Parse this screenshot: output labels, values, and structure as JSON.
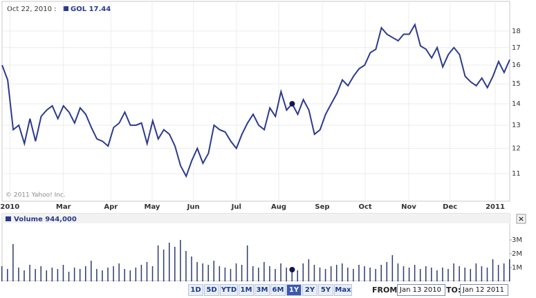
{
  "chart_data": [
    {
      "type": "line",
      "header_date": "Oct 22, 2010 :",
      "legend_text": "GOL 17.44",
      "copyright": "© 2011 Yahoo! Inc.",
      "log_scale": true,
      "grid": true,
      "color": "#2a3a8c",
      "xlim": [
        0,
        91
      ],
      "xticks": [
        {
          "value": 1.4,
          "label": "2010"
        },
        {
          "value": 11,
          "label": "Mar"
        },
        {
          "value": 19.5,
          "label": "Apr"
        },
        {
          "value": 26.9,
          "label": "May"
        },
        {
          "value": 34.3,
          "label": "Jun"
        },
        {
          "value": 42,
          "label": "Jul"
        },
        {
          "value": 49.6,
          "label": "Aug"
        },
        {
          "value": 57.4,
          "label": "Sep"
        },
        {
          "value": 65.1,
          "label": "Oct"
        },
        {
          "value": 72.9,
          "label": "Nov"
        },
        {
          "value": 80.3,
          "label": "Dec"
        },
        {
          "value": 88.4,
          "label": "2011"
        }
      ],
      "ylim": [
        10,
        19.1
      ],
      "yticks": [
        11,
        12,
        13,
        14,
        15,
        16,
        17,
        18
      ],
      "values": [
        16.0,
        15.2,
        12.8,
        13.0,
        12.2,
        13.3,
        12.3,
        13.4,
        13.7,
        13.9,
        13.3,
        13.9,
        13.6,
        13.1,
        13.8,
        13.5,
        12.9,
        12.4,
        12.3,
        12.1,
        12.9,
        13.1,
        13.6,
        13.0,
        13.0,
        13.1,
        12.2,
        13.2,
        12.4,
        12.8,
        12.6,
        12.1,
        11.3,
        10.9,
        11.5,
        12.0,
        11.4,
        11.8,
        13.0,
        12.8,
        12.7,
        12.3,
        12.0,
        12.6,
        13.1,
        13.5,
        13.0,
        12.8,
        13.8,
        13.4,
        14.6,
        13.7,
        14.0,
        13.5,
        14.2,
        13.7,
        12.6,
        12.8,
        13.5,
        14.0,
        14.5,
        15.2,
        14.9,
        15.4,
        15.8,
        16.0,
        16.7,
        16.9,
        18.2,
        17.8,
        17.6,
        17.4,
        17.8,
        17.8,
        18.4,
        17.1,
        16.9,
        16.4,
        17.0,
        15.9,
        16.6,
        17.0,
        16.6,
        15.4,
        15.1,
        14.9,
        15.3,
        14.8,
        15.4,
        16.2,
        15.6,
        16.3
      ]
    },
    {
      "type": "bar",
      "legend_text": "Volume 944,000",
      "color": "#2a3a6c",
      "xlim": [
        0,
        91
      ],
      "ylim": [
        0,
        4000000
      ],
      "yticks": [
        {
          "value": 1000000,
          "label": "1M"
        },
        {
          "value": 2000000,
          "label": "2M"
        },
        {
          "value": 3000000,
          "label": "3M"
        }
      ],
      "values": [
        1100000,
        900000,
        2700000,
        1000000,
        800000,
        1200000,
        900000,
        1100000,
        800000,
        1000000,
        900000,
        1200000,
        700000,
        1000000,
        900000,
        1100000,
        1500000,
        900000,
        800000,
        1000000,
        1100000,
        1300000,
        900000,
        800000,
        1000000,
        1200000,
        1400000,
        1100000,
        2600000,
        2300000,
        2800000,
        2500000,
        3000000,
        2200000,
        1800000,
        1400000,
        1300000,
        1200000,
        1500000,
        1100000,
        1000000,
        900000,
        1300000,
        1200000,
        2600000,
        1100000,
        1000000,
        1400000,
        1100000,
        900000,
        1300000,
        1000000,
        900000,
        800000,
        1300000,
        1600000,
        1200000,
        1000000,
        900000,
        1100000,
        1200000,
        1300000,
        1000000,
        900000,
        1200000,
        1100000,
        1000000,
        900000,
        1200000,
        1400000,
        1900000,
        1300000,
        1100000,
        1000000,
        1200000,
        900000,
        1100000,
        1000000,
        800000,
        1000000,
        900000,
        1300000,
        1100000,
        1000000,
        900000,
        1300000,
        1100000,
        1000000,
        1600000,
        1200000,
        1300000,
        1600000
      ]
    }
  ],
  "controls": {
    "buttons": [
      "1D",
      "5D",
      "YTD",
      "1M",
      "3M",
      "6M",
      "1Y",
      "2Y",
      "5Y",
      "Max"
    ],
    "active": "1Y",
    "from_label": "FROM:",
    "from_value": "Jan 13 2010",
    "to_label": "TO:",
    "to_value": "Jan 12 2011"
  }
}
